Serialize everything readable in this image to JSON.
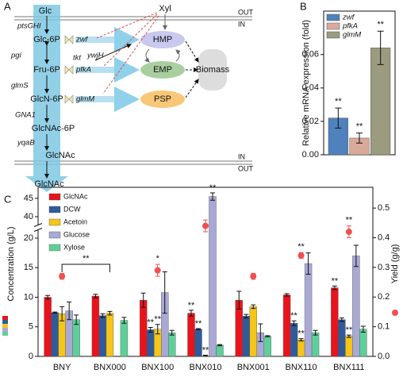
{
  "panel_labels": [
    "A",
    "B",
    "C"
  ],
  "diagram": {
    "membrane_labels": [
      "OUT",
      "IN",
      "IN",
      "OUT"
    ],
    "metabolites": [
      "Glc",
      "Glc-6P",
      "Fru-6P",
      "GlcN-6P",
      "GlcNAc-6P",
      "GlcNAc",
      "GlcNAc",
      "Xyl"
    ],
    "enzymes": [
      "ptsGHI",
      "pgi",
      "glmS",
      "GNA1",
      "yqaB",
      "zwf",
      "pfkA",
      "glmM",
      "tkt",
      "ywjH"
    ],
    "pathways": [
      "HMP",
      "EMP",
      "PSP"
    ],
    "sink": "Biomass"
  },
  "chart_data": [
    {
      "type": "bar",
      "ylabel": "Relative mRNA expression (fold)",
      "series": [
        {
          "name": "zwf",
          "color": "#4f81bd",
          "values": [
            0.022
          ],
          "errors": [
            0.006
          ],
          "significance": [
            "**"
          ]
        },
        {
          "name": "pfkA",
          "color": "#d9a99a",
          "values": [
            0.01
          ],
          "errors": [
            0.003
          ],
          "significance": [
            "**"
          ]
        },
        {
          "name": "glmM",
          "color": "#9b9b7f",
          "values": [
            0.064
          ],
          "errors": [
            0.01
          ],
          "significance": [
            "**"
          ]
        }
      ],
      "ylim": [
        0,
        0.086
      ],
      "yticks": [
        {
          "value": 0,
          "label": "0.00"
        },
        0.02,
        0.04,
        0.06
      ]
    },
    {
      "type": "bar",
      "ylabel": "Concentration (g/L)",
      "y2label": "Yield (g/g)",
      "categories": [
        "BNY",
        "BNX000",
        "BNX100",
        "BNX010",
        "BNX001",
        "BNX110",
        "BNX111"
      ],
      "series": [
        {
          "name": "GlcNAc",
          "color": "#e8141c",
          "values": [
            10.0,
            10.2,
            9.5,
            7.3,
            9.5,
            10.4,
            11.6
          ],
          "errors": [
            0.3,
            0.3,
            1.2,
            0.5,
            1.5,
            0.2,
            0.3
          ],
          "significance": [
            null,
            null,
            null,
            "**",
            null,
            null,
            "**"
          ]
        },
        {
          "name": "DCW",
          "color": "#2f5b9a",
          "values": [
            7.4,
            6.9,
            4.5,
            4.6,
            6.8,
            5.6,
            6.2
          ],
          "errors": [
            0.1,
            0.3,
            0.4,
            0.1,
            0.3,
            0.4,
            0.3
          ],
          "significance": [
            null,
            null,
            "**",
            "**",
            null,
            "**",
            null
          ]
        },
        {
          "name": "Acetoin",
          "color": "#f5c518",
          "values": [
            7.2,
            7.3,
            4.6,
            0.1,
            8.4,
            2.8,
            3.4
          ],
          "errors": [
            1.2,
            0.3,
            0.8,
            0.1,
            0.3,
            0.2,
            0.2
          ],
          "significance": [
            null,
            null,
            "**",
            "**",
            null,
            "**",
            "**"
          ]
        },
        {
          "name": "Glucose",
          "color": "#a9a9d6",
          "values": [
            7.7,
            null,
            10.8,
            45.5,
            4.0,
            15.7,
            17.0
          ],
          "errors": [
            1.5,
            null,
            3.5,
            1.0,
            1.5,
            1.8,
            1.8
          ],
          "significance": [
            null,
            null,
            null,
            "**",
            null,
            null,
            null
          ]
        },
        {
          "name": "Xylose",
          "color": "#5fcf9a",
          "values": [
            6.2,
            6.1,
            4.0,
            1.9,
            3.4,
            4.0,
            4.6
          ],
          "errors": [
            0.8,
            0.5,
            0.4,
            0.1,
            0.1,
            0.4,
            0.5
          ]
        },
        {
          "type": "scatter",
          "axis": "y2",
          "color": "#f05050",
          "values": [
            0.27,
            null,
            0.29,
            0.44,
            0.27,
            0.34,
            0.42
          ],
          "errors": [
            0.01,
            null,
            0.02,
            0.02,
            0.01,
            0.01,
            0.02
          ],
          "significance": [
            null,
            null,
            "*",
            null,
            null,
            "**",
            "**"
          ]
        }
      ],
      "ylim": [
        0,
        48
      ],
      "yticks": [
        0,
        5,
        10,
        15,
        20,
        40,
        45
      ],
      "y2lim": [
        0,
        0.57
      ],
      "y2ticks": [
        {
          "value": 0,
          "label": "0.0"
        },
        0.1,
        0.2,
        0.3,
        0.4,
        0.5
      ],
      "bracket_label": "**"
    }
  ]
}
